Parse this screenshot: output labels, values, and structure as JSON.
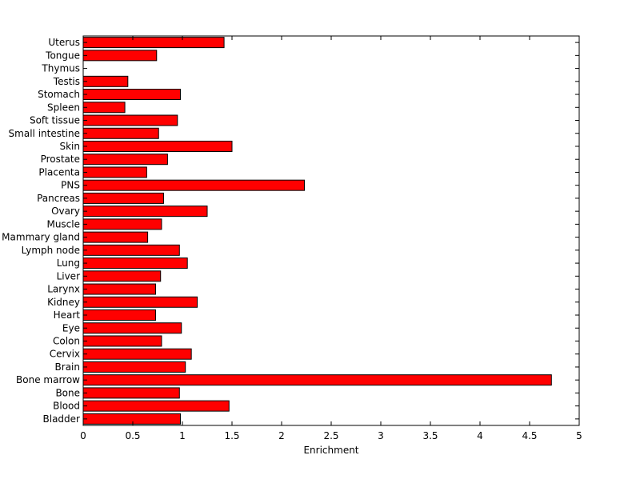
{
  "chart_data": {
    "type": "bar",
    "orientation": "horizontal",
    "xlabel": "Enrichment",
    "ylabel": "",
    "xlim": [
      0,
      5
    ],
    "xticks": [
      0,
      0.5,
      1,
      1.5,
      2,
      2.5,
      3,
      3.5,
      4,
      4.5,
      5
    ],
    "xtick_labels": [
      "0",
      "0.5",
      "1",
      "1.5",
      "2",
      "2.5",
      "3",
      "3.5",
      "4",
      "4.5",
      "5"
    ],
    "categories": [
      "Uterus",
      "Tongue",
      "Thymus",
      "Testis",
      "Stomach",
      "Spleen",
      "Soft tissue",
      "Small intestine",
      "Skin",
      "Prostate",
      "Placenta",
      "PNS",
      "Pancreas",
      "Ovary",
      "Muscle",
      "Mammary gland",
      "Lymph node",
      "Lung",
      "Liver",
      "Larynx",
      "Kidney",
      "Heart",
      "Eye",
      "Colon",
      "Cervix",
      "Brain",
      "Bone marrow",
      "Bone",
      "Blood",
      "Bladder"
    ],
    "values": [
      1.42,
      0.74,
      0.0,
      0.45,
      0.98,
      0.42,
      0.95,
      0.76,
      1.5,
      0.85,
      0.64,
      2.23,
      0.81,
      1.25,
      0.79,
      0.65,
      0.97,
      1.05,
      0.78,
      0.73,
      1.15,
      0.73,
      0.99,
      0.79,
      1.09,
      1.03,
      4.72,
      0.97,
      1.47,
      0.98
    ],
    "bar_color": "#ff0000",
    "edge_color": "#000000",
    "grid": false,
    "legend": "none"
  }
}
